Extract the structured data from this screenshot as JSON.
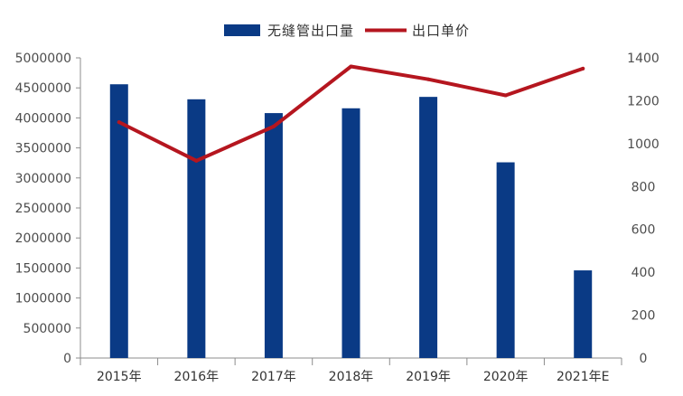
{
  "chart_data": {
    "type": "bar+line",
    "categories": [
      "2015年",
      "2016年",
      "2017年",
      "2018年",
      "2019年",
      "2020年",
      "2021年E"
    ],
    "series": [
      {
        "name": "无缝管出口量",
        "type": "bar",
        "axis": "left",
        "color": "#0a3a85",
        "values": [
          4560000,
          4310000,
          4080000,
          4160000,
          4350000,
          3260000,
          1460000
        ]
      },
      {
        "name": "出口单价",
        "type": "line",
        "axis": "right",
        "color": "#b5161f",
        "values": [
          1100,
          920,
          1080,
          1360,
          1300,
          1225,
          1350
        ]
      }
    ],
    "y_left": {
      "range": [
        0,
        5000000
      ],
      "ticks": [
        "0",
        "500000",
        "1000000",
        "1500000",
        "2000000",
        "2500000",
        "3000000",
        "3500000",
        "4000000",
        "4500000",
        "5000000"
      ]
    },
    "y_right": {
      "range": [
        0,
        1400
      ],
      "ticks": [
        "0",
        "200",
        "400",
        "600",
        "800",
        "1000",
        "1200",
        "1400"
      ]
    },
    "legend_position": "top-center",
    "grid": false
  }
}
